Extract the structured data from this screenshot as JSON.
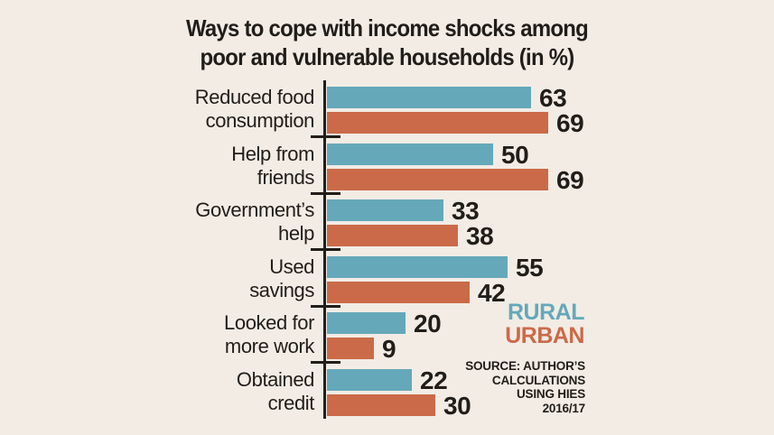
{
  "title": "Ways to cope with income shocks among\npoor and vulnerable households (in %)",
  "legend": {
    "rural_label": "RURAL",
    "urban_label": "URBAN"
  },
  "source": {
    "text": "SOURCE: AUTHOR’S\nCALCULATIONS\nUSING HIES\n2016/17"
  },
  "colors": {
    "rural": "#65a8b9",
    "urban": "#cb6a48",
    "background": "#f2ece5",
    "text": "#211d18"
  },
  "chart_data": {
    "type": "bar",
    "orientation": "horizontal",
    "title": "Ways to cope with income shocks among poor and vulnerable households (in %)",
    "categories": [
      "Reduced food\nconsumption",
      "Help from\nfriends",
      "Government’s\nhelp",
      "Used\nsavings",
      "Looked for\nmore work",
      "Obtained\ncredit"
    ],
    "series": [
      {
        "name": "RURAL",
        "color": "#65a8b9",
        "values": [
          63,
          50,
          33,
          55,
          20,
          22
        ]
      },
      {
        "name": "URBAN",
        "color": "#cb6a48",
        "values": [
          69,
          69,
          38,
          42,
          9,
          30
        ]
      }
    ],
    "value_labels": true,
    "xlim": [
      0,
      69
    ],
    "grid": false,
    "legend_position": "middle-right"
  }
}
